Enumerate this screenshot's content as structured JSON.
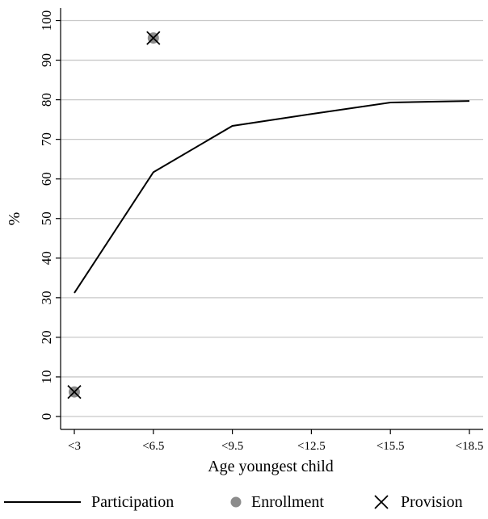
{
  "chart_data": {
    "type": "line",
    "xlabel": "Age youngest child",
    "ylabel": "%",
    "categories": [
      "<3",
      "<6.5",
      "<9.5",
      "<12.5",
      "<15.5",
      "<18.5"
    ],
    "ylim": [
      0,
      100
    ],
    "yticks": [
      0,
      10,
      20,
      30,
      40,
      50,
      60,
      70,
      80,
      90,
      100
    ],
    "grid": true,
    "legend_position": "bottom",
    "series": [
      {
        "name": "Participation",
        "kind": "line",
        "color": "#000000",
        "values": [
          31.2,
          61.7,
          73.4,
          76.4,
          79.3,
          79.7
        ]
      },
      {
        "name": "Enrollment",
        "kind": "marker-circle",
        "color": "#8c8c8c",
        "values": [
          6.2,
          95.6,
          null,
          null,
          null,
          null
        ]
      },
      {
        "name": "Provision",
        "kind": "marker-x",
        "color": "#000000",
        "values": [
          6.2,
          95.6,
          null,
          null,
          null,
          null
        ]
      }
    ]
  }
}
